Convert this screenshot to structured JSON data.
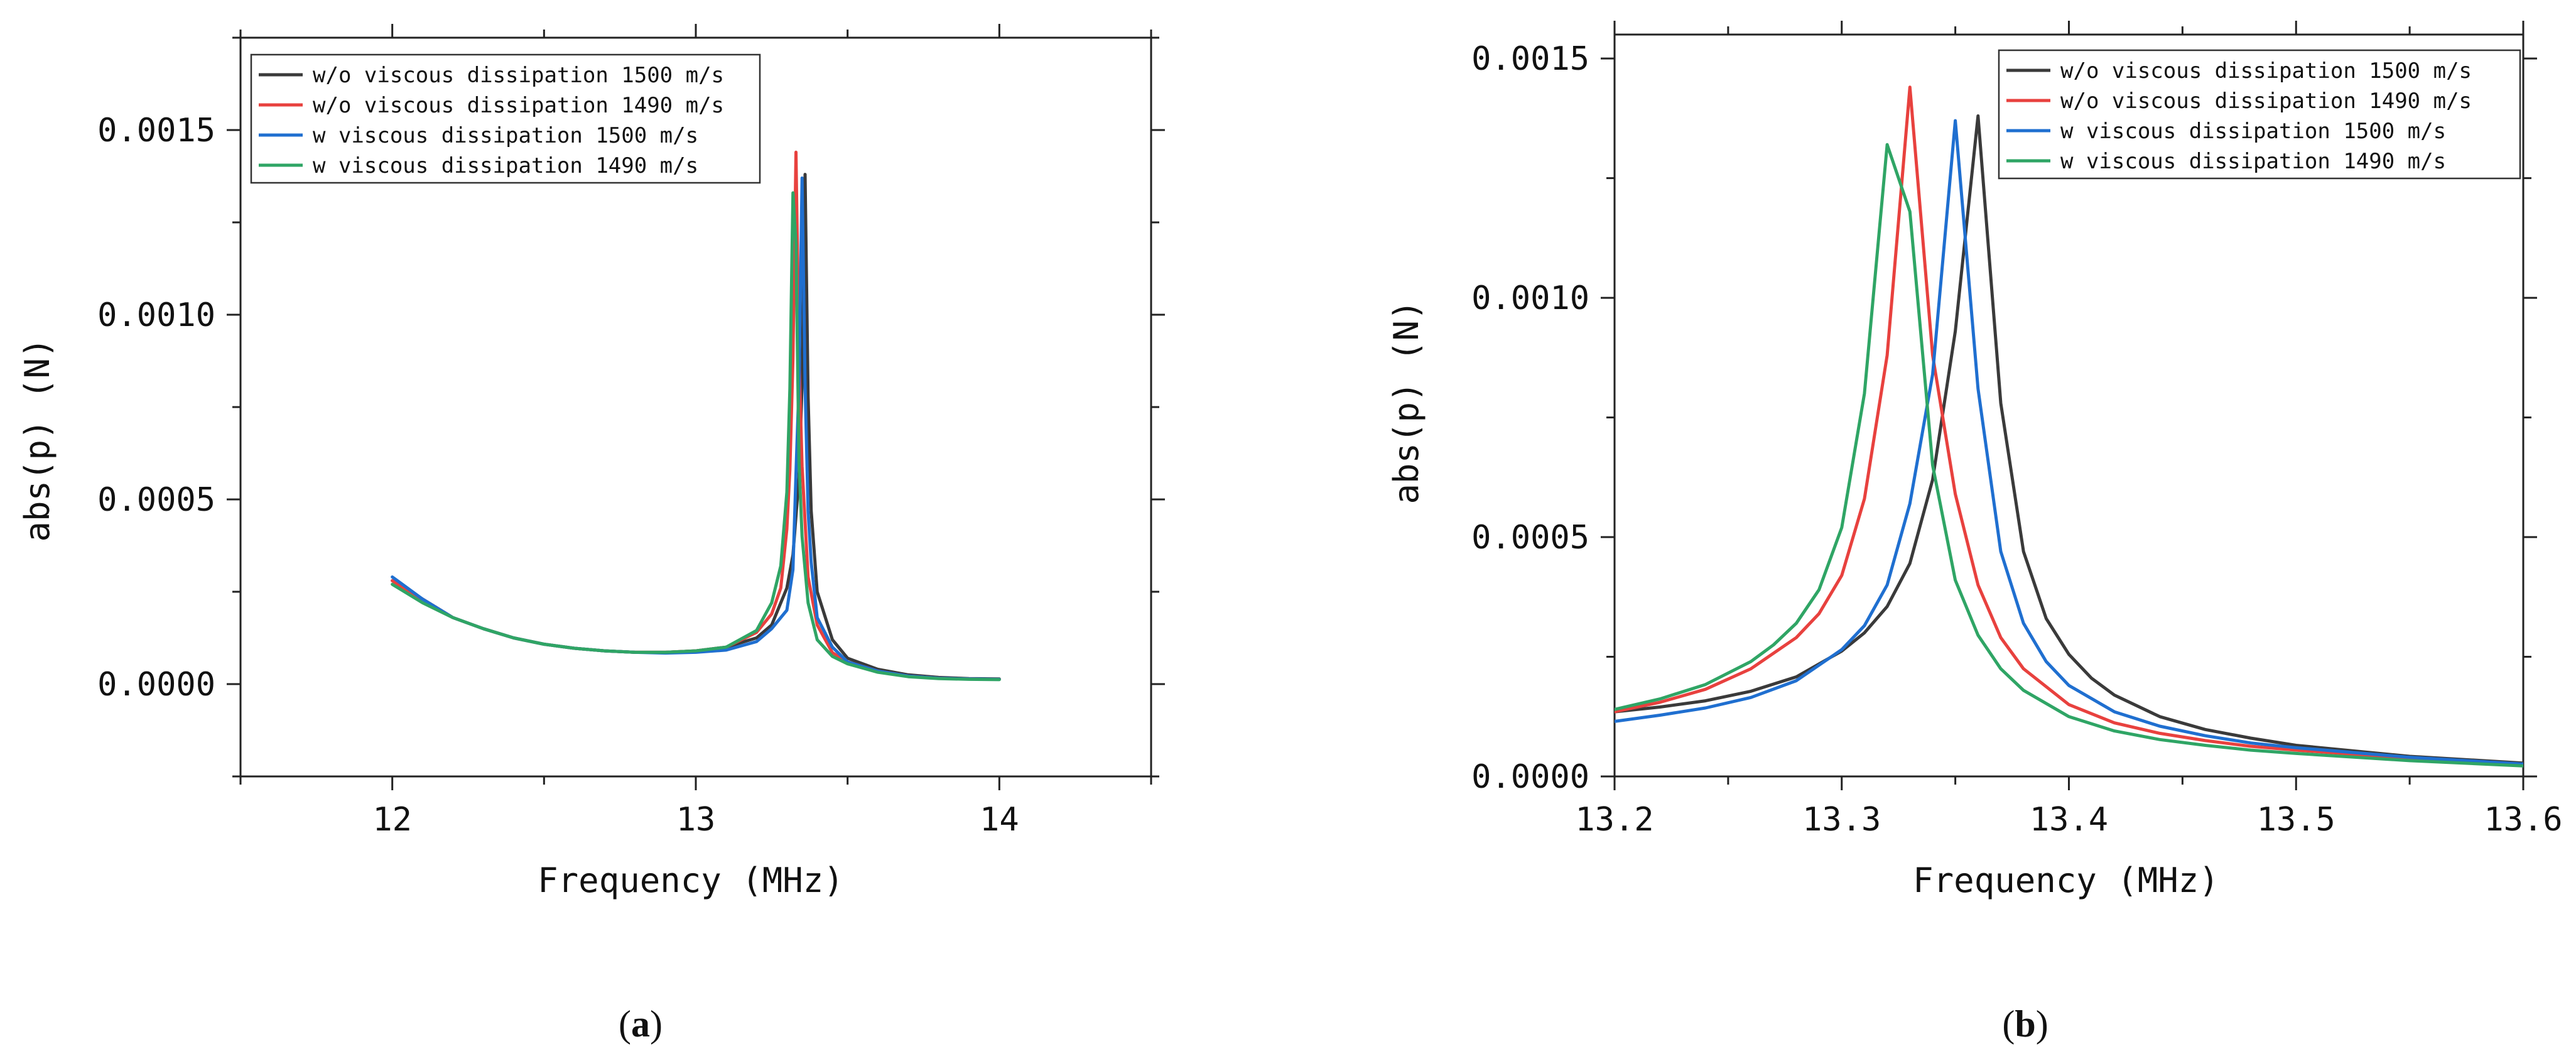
{
  "chart_data": [
    {
      "type": "line",
      "caption": "a",
      "xlabel": "Frequency (MHz)",
      "ylabel": "abs(p) (N)",
      "xlim": [
        11.5,
        14.5
      ],
      "ylim": [
        -0.00025,
        0.00175
      ],
      "xticks": [
        12,
        13,
        14
      ],
      "xtick_labels": [
        "12",
        "13",
        "14"
      ],
      "yticks": [
        0,
        0.0005,
        0.001,
        0.0015
      ],
      "ytick_labels": [
        "0.0000",
        "0.0005",
        "0.0010",
        "0.0015"
      ],
      "legend_position": "top-left",
      "series": [
        {
          "name": "w/o viscous dissipation 1500 m/s",
          "color": "#3a3a3a",
          "x": [
            12.0,
            12.1,
            12.2,
            12.3,
            12.4,
            12.5,
            12.6,
            12.7,
            12.8,
            12.9,
            13.0,
            13.1,
            13.2,
            13.25,
            13.3,
            13.32,
            13.34,
            13.35,
            13.36,
            13.37,
            13.38,
            13.4,
            13.45,
            13.5,
            13.6,
            13.7,
            13.8,
            13.9,
            14.0
          ],
          "y": [
            0.00028,
            0.00023,
            0.00018,
            0.00015,
            0.000125,
            0.000108,
            9.7e-05,
            9e-05,
            8.6e-05,
            8.6e-05,
            9e-05,
            0.0001,
            0.000125,
            0.00016,
            0.00026,
            0.00035,
            0.00056,
            0.00081,
            0.00138,
            0.00078,
            0.00047,
            0.00025,
            0.00012,
            7e-05,
            4e-05,
            2.5e-05,
            1.8e-05,
            1.5e-05,
            1.4e-05
          ]
        },
        {
          "name": "w/o viscous dissipation 1490 m/s",
          "color": "#e8413e",
          "x": [
            12.0,
            12.1,
            12.2,
            12.3,
            12.4,
            12.5,
            12.6,
            12.7,
            12.8,
            12.9,
            13.0,
            13.1,
            13.2,
            13.25,
            13.28,
            13.3,
            13.31,
            13.32,
            13.33,
            13.34,
            13.35,
            13.37,
            13.4,
            13.45,
            13.5,
            13.6,
            13.7,
            13.8,
            13.9,
            14.0
          ],
          "y": [
            0.00028,
            0.00023,
            0.00018,
            0.00015,
            0.000125,
            0.000108,
            9.7e-05,
            9e-05,
            8.6e-05,
            8.6e-05,
            9e-05,
            0.0001,
            0.00014,
            0.00019,
            0.00026,
            0.00042,
            0.00058,
            0.00088,
            0.00144,
            0.00089,
            0.00059,
            0.00029,
            0.00016,
            8.5e-05,
            6e-05,
            3.5e-05,
            2.2e-05,
            1.6e-05,
            1.4e-05,
            1.3e-05
          ]
        },
        {
          "name": "w viscous dissipation 1500 m/s",
          "color": "#1f6fd0",
          "x": [
            12.0,
            12.1,
            12.2,
            12.3,
            12.4,
            12.5,
            12.6,
            12.7,
            12.8,
            12.9,
            13.0,
            13.1,
            13.2,
            13.25,
            13.3,
            13.32,
            13.33,
            13.34,
            13.35,
            13.36,
            13.37,
            13.38,
            13.4,
            13.45,
            13.5,
            13.6,
            13.7,
            13.8,
            13.9,
            14.0
          ],
          "y": [
            0.00029,
            0.00023,
            0.00018,
            0.00015,
            0.000125,
            0.000108,
            9.7e-05,
            9e-05,
            8.6e-05,
            8.4e-05,
            8.6e-05,
            9.2e-05,
            0.000115,
            0.00015,
            0.0002,
            0.00031,
            0.00057,
            0.00081,
            0.00137,
            0.00081,
            0.00047,
            0.00033,
            0.00018,
            0.0001,
            6e-05,
            3.5e-05,
            2.2e-05,
            1.6e-05,
            1.4e-05,
            1.3e-05
          ]
        },
        {
          "name": "w viscous dissipation 1490 m/s",
          "color": "#2fa565",
          "x": [
            12.0,
            12.1,
            12.2,
            12.3,
            12.4,
            12.5,
            12.6,
            12.7,
            12.8,
            12.9,
            13.0,
            13.1,
            13.2,
            13.25,
            13.28,
            13.3,
            13.31,
            13.32,
            13.33,
            13.34,
            13.35,
            13.37,
            13.4,
            13.45,
            13.5,
            13.6,
            13.7,
            13.8,
            13.9,
            14.0
          ],
          "y": [
            0.00027,
            0.00022,
            0.00018,
            0.00015,
            0.000125,
            0.000108,
            9.7e-05,
            9e-05,
            8.6e-05,
            8.6e-05,
            9e-05,
            0.0001,
            0.000145,
            0.00022,
            0.00032,
            0.00052,
            0.0008,
            0.00133,
            0.00119,
            0.0006,
            0.0004,
            0.00022,
            0.00012,
            7.5e-05,
            5.5e-05,
            3.2e-05,
            2e-05,
            1.5e-05,
            1.3e-05,
            1.2e-05
          ]
        }
      ]
    },
    {
      "type": "line",
      "caption": "b",
      "xlabel": "Frequency (MHz)",
      "ylabel": "abs(p) (N)",
      "xlim": [
        13.2,
        13.6
      ],
      "ylim": [
        0,
        0.00155
      ],
      "xticks": [
        13.2,
        13.3,
        13.4,
        13.5,
        13.6
      ],
      "xtick_labels": [
        "13.2",
        "13.3",
        "13.4",
        "13.5",
        "13.6"
      ],
      "yticks": [
        0,
        0.0005,
        0.001,
        0.0015
      ],
      "ytick_labels": [
        "0.0000",
        "0.0005",
        "0.0010",
        "0.0015"
      ],
      "legend_position": "top-right",
      "series": [
        {
          "name": "w/o viscous dissipation 1500 m/s",
          "color": "#3a3a3a",
          "x": [
            13.2,
            13.22,
            13.24,
            13.26,
            13.28,
            13.3,
            13.31,
            13.32,
            13.33,
            13.34,
            13.35,
            13.36,
            13.37,
            13.38,
            13.39,
            13.4,
            13.41,
            13.42,
            13.44,
            13.46,
            13.48,
            13.5,
            13.55,
            13.6
          ],
          "y": [
            0.000135,
            0.000145,
            0.000158,
            0.000178,
            0.000208,
            0.000262,
            0.0003,
            0.000355,
            0.000445,
            0.00062,
            0.00093,
            0.00138,
            0.00078,
            0.00047,
            0.00033,
            0.000255,
            0.000205,
            0.00017,
            0.000125,
            9.8e-05,
            8e-05,
            6.5e-05,
            4.2e-05,
            2.8e-05
          ]
        },
        {
          "name": "w/o viscous dissipation 1490 m/s",
          "color": "#e8413e",
          "x": [
            13.2,
            13.22,
            13.24,
            13.26,
            13.28,
            13.29,
            13.3,
            13.31,
            13.32,
            13.33,
            13.34,
            13.35,
            13.36,
            13.37,
            13.38,
            13.4,
            13.42,
            13.44,
            13.46,
            13.48,
            13.5,
            13.55,
            13.6
          ],
          "y": [
            0.000135,
            0.000155,
            0.000182,
            0.000225,
            0.00029,
            0.00034,
            0.00042,
            0.00058,
            0.00088,
            0.00144,
            0.00088,
            0.00059,
            0.0004,
            0.00029,
            0.000225,
            0.00015,
            0.000112,
            9e-05,
            7.5e-05,
            6.3e-05,
            5.5e-05,
            3.8e-05,
            2.5e-05
          ]
        },
        {
          "name": "w viscous dissipation 1500 m/s",
          "color": "#1f6fd0",
          "x": [
            13.2,
            13.22,
            13.24,
            13.26,
            13.28,
            13.3,
            13.31,
            13.32,
            13.33,
            13.34,
            13.35,
            13.36,
            13.37,
            13.38,
            13.39,
            13.4,
            13.42,
            13.44,
            13.46,
            13.48,
            13.5,
            13.55,
            13.6
          ],
          "y": [
            0.000115,
            0.000128,
            0.000143,
            0.000165,
            0.0002,
            0.000265,
            0.000315,
            0.0004,
            0.00057,
            0.00084,
            0.00137,
            0.00081,
            0.00047,
            0.00032,
            0.00024,
            0.00019,
            0.000135,
            0.000105,
            8.5e-05,
            7e-05,
            6e-05,
            4e-05,
            2.6e-05
          ]
        },
        {
          "name": "w viscous dissipation 1490 m/s",
          "color": "#2fa565",
          "x": [
            13.2,
            13.22,
            13.24,
            13.26,
            13.27,
            13.28,
            13.29,
            13.3,
            13.31,
            13.32,
            13.33,
            13.34,
            13.35,
            13.36,
            13.37,
            13.38,
            13.4,
            13.42,
            13.44,
            13.46,
            13.48,
            13.5,
            13.55,
            13.6
          ],
          "y": [
            0.00014,
            0.000162,
            0.000192,
            0.00024,
            0.000275,
            0.00032,
            0.00039,
            0.00052,
            0.0008,
            0.00132,
            0.00118,
            0.00065,
            0.00041,
            0.000295,
            0.000225,
            0.00018,
            0.000125,
            9.5e-05,
            7.7e-05,
            6.5e-05,
            5.5e-05,
            4.8e-05,
            3.3e-05,
            2.2e-05
          ]
        }
      ]
    }
  ]
}
